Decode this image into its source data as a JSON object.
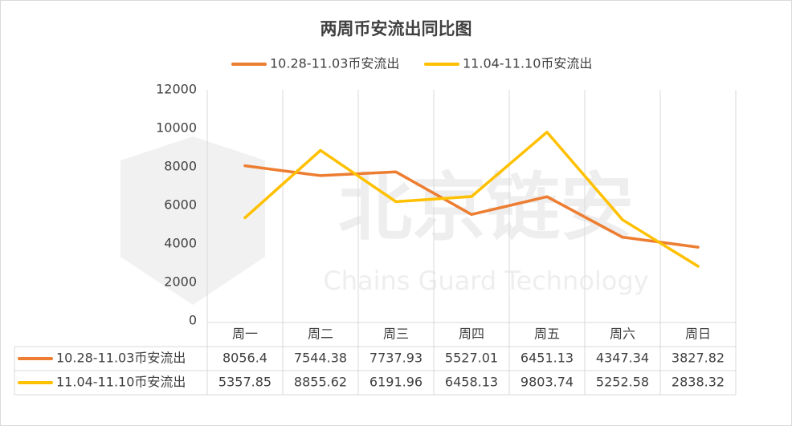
{
  "chart_data": {
    "type": "line",
    "title": "两周币安流出同比图",
    "categories": [
      "周一",
      "周二",
      "周三",
      "周四",
      "周五",
      "周六",
      "周日"
    ],
    "series": [
      {
        "name": "10.28-11.03币安流出",
        "color": "#ED7D31",
        "values": [
          8056.4,
          7544.38,
          7737.93,
          5527.01,
          6451.13,
          4347.34,
          3827.82
        ]
      },
      {
        "name": "11.04-11.10币安流出",
        "color": "#FFC000",
        "values": [
          5357.85,
          8855.62,
          6191.96,
          6458.13,
          9803.74,
          5252.58,
          2838.32
        ]
      }
    ],
    "ylim": [
      0,
      12000
    ],
    "yticks": [
      0,
      2000,
      4000,
      6000,
      8000,
      10000,
      12000
    ],
    "grid": "vertical",
    "legend": "top",
    "data_table": true,
    "watermark": {
      "text": "北京链安",
      "subtitle": "Chains Guard Technology"
    }
  }
}
